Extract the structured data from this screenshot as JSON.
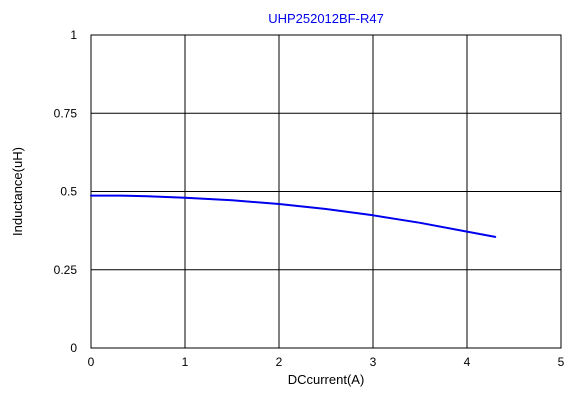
{
  "chart_data": {
    "type": "line",
    "title": "UHP252012BF-R47",
    "xlabel": "DCcurrent(A)",
    "ylabel": "Inductance(uH)",
    "xlim": [
      0,
      5
    ],
    "ylim": [
      0,
      1
    ],
    "x_ticks": [
      0,
      1,
      2,
      3,
      4,
      5
    ],
    "y_ticks": [
      0,
      0.25,
      0.5,
      0.75,
      1
    ],
    "x_tick_labels": [
      "0",
      "1",
      "2",
      "3",
      "4",
      "5"
    ],
    "y_tick_labels": [
      "0",
      "0.25",
      "0.5",
      "0.75",
      "1"
    ],
    "grid": true,
    "series": [
      {
        "color": "#0000ee",
        "x": [
          0,
          0.3,
          0.6,
          1.0,
          1.5,
          2.0,
          2.5,
          3.0,
          3.5,
          4.0,
          4.3
        ],
        "y": [
          0.487,
          0.487,
          0.485,
          0.48,
          0.472,
          0.46,
          0.444,
          0.424,
          0.4,
          0.372,
          0.355
        ]
      }
    ],
    "title_color": "#0000ee"
  }
}
